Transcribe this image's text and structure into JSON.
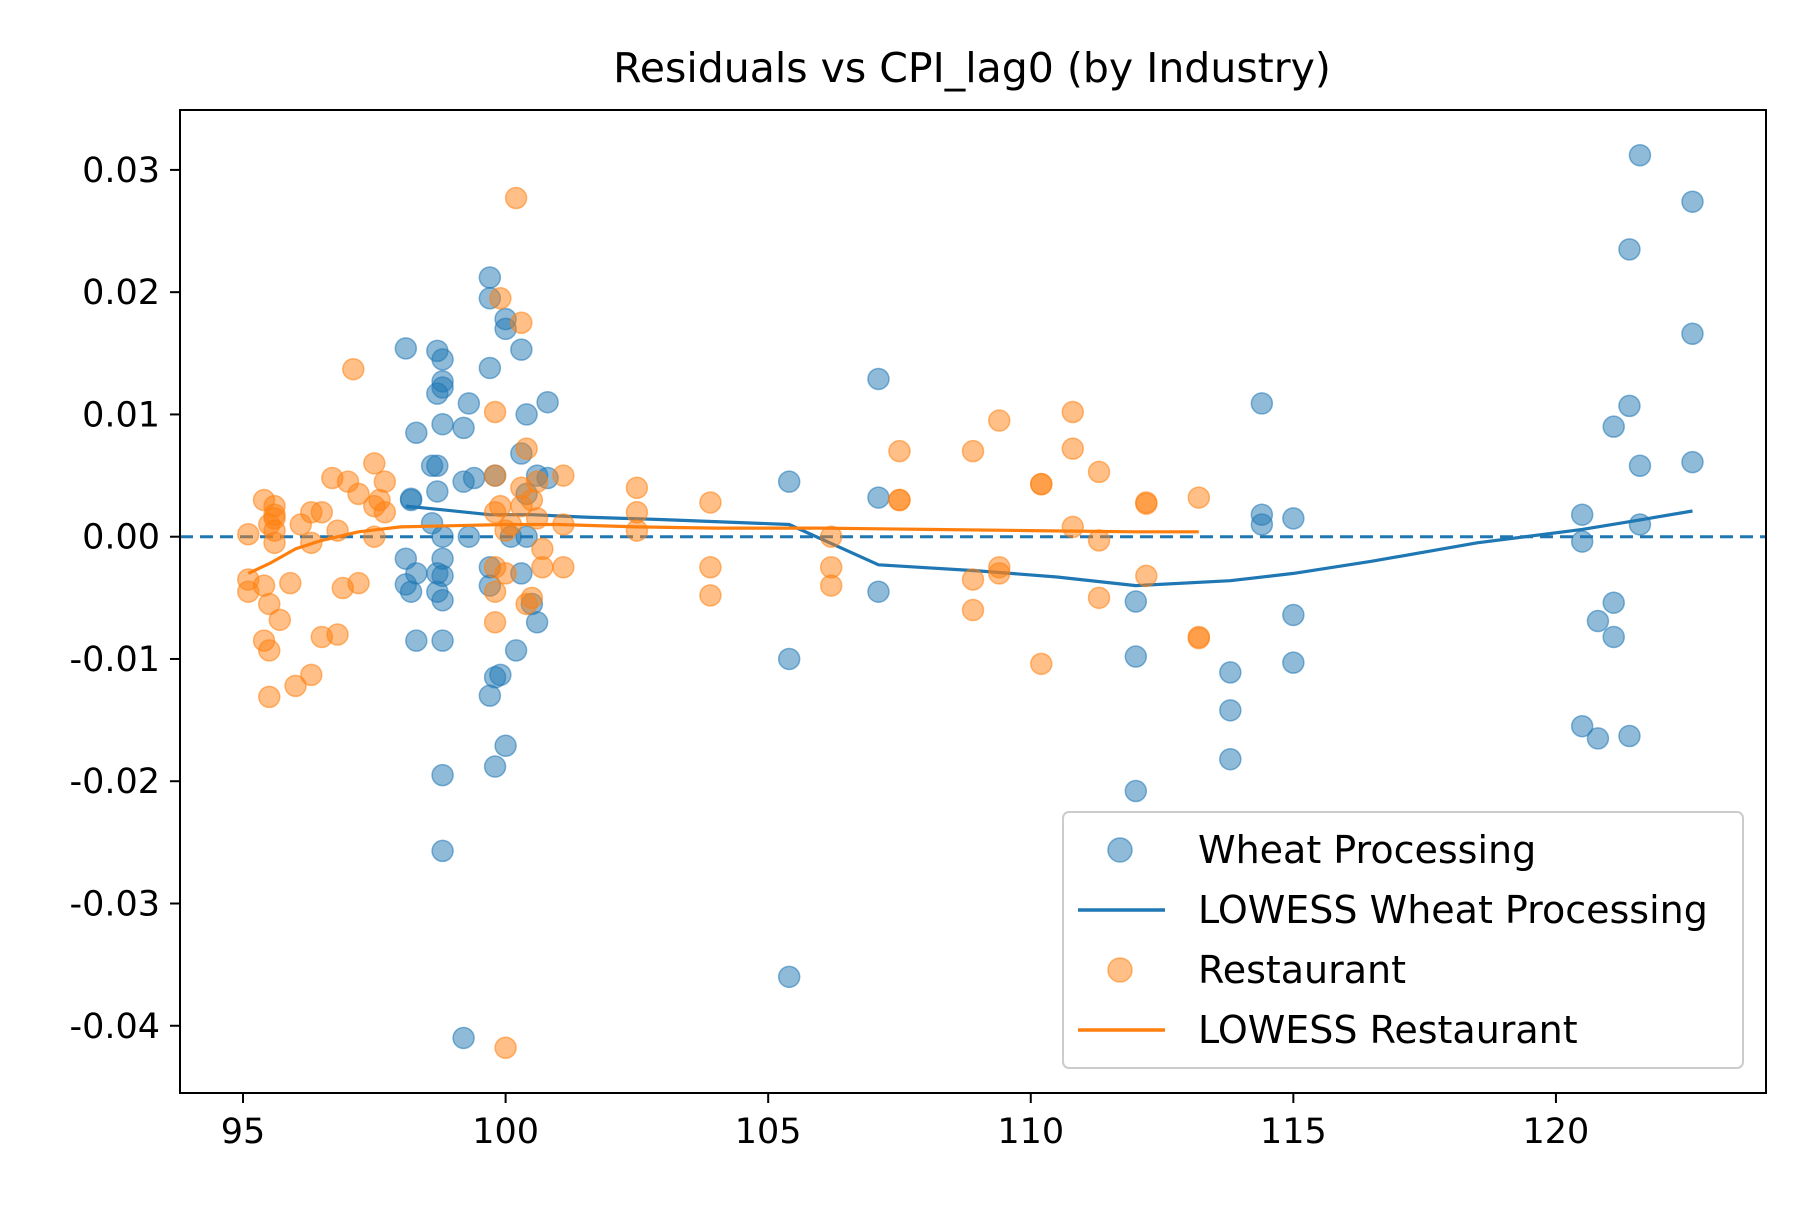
{
  "chart_data": {
    "type": "scatter",
    "title": "Residuals vs CPI_lag0 (by Industry)",
    "xlabel": "",
    "ylabel": "",
    "xlim": [
      93.8,
      124.0
    ],
    "ylim": [
      -0.0455,
      0.0349
    ],
    "x_ticks": [
      95,
      100,
      105,
      110,
      115,
      120
    ],
    "x_tick_labels": [
      "95",
      "100",
      "105",
      "110",
      "115",
      "120"
    ],
    "y_ticks": [
      -0.04,
      -0.03,
      -0.02,
      -0.01,
      0.0,
      0.01,
      0.02,
      0.03
    ],
    "y_tick_labels": [
      "-0.04",
      "-0.03",
      "-0.02",
      "-0.01",
      "0.00",
      "0.01",
      "0.02",
      "0.03"
    ],
    "reference_line": {
      "y": 0.0,
      "style": "dashed",
      "color": "#1f77b4"
    },
    "grid": false,
    "legend_position": "lower right",
    "series": [
      {
        "name": "Wheat Processing",
        "kind": "scatter",
        "color": "#1f77b4",
        "points": [
          [
            98.1,
            0.0154
          ],
          [
            98.2,
            0.003
          ],
          [
            98.2,
            0.0031
          ],
          [
            98.3,
            0.0085
          ],
          [
            98.3,
            -0.0085
          ],
          [
            98.1,
            -0.0018
          ],
          [
            98.1,
            -0.0039
          ],
          [
            98.2,
            -0.0045
          ],
          [
            98.3,
            -0.003
          ],
          [
            98.6,
            0.0058
          ],
          [
            98.6,
            0.0011
          ],
          [
            98.7,
            0.0152
          ],
          [
            98.8,
            0.0145
          ],
          [
            98.8,
            0.0127
          ],
          [
            98.8,
            0.0122
          ],
          [
            98.7,
            0.0117
          ],
          [
            98.8,
            0.0092
          ],
          [
            98.7,
            0.0058
          ],
          [
            98.7,
            0.0037
          ],
          [
            98.8,
            0.0
          ],
          [
            98.8,
            -0.0018
          ],
          [
            98.7,
            -0.003
          ],
          [
            98.8,
            -0.0032
          ],
          [
            98.7,
            -0.0045
          ],
          [
            98.8,
            -0.0052
          ],
          [
            98.8,
            -0.0085
          ],
          [
            98.8,
            -0.0195
          ],
          [
            98.8,
            -0.0257
          ],
          [
            99.2,
            0.0089
          ],
          [
            99.3,
            0.0109
          ],
          [
            99.2,
            0.0045
          ],
          [
            99.4,
            0.0048
          ],
          [
            99.3,
            0.0
          ],
          [
            99.2,
            -0.041
          ],
          [
            99.7,
            0.0212
          ],
          [
            99.7,
            0.0195
          ],
          [
            99.7,
            0.0138
          ],
          [
            99.8,
            0.005
          ],
          [
            99.7,
            -0.0025
          ],
          [
            99.7,
            -0.004
          ],
          [
            99.7,
            -0.013
          ],
          [
            99.8,
            -0.0115
          ],
          [
            99.8,
            -0.0188
          ],
          [
            99.9,
            -0.0113
          ],
          [
            100.0,
            -0.0171
          ],
          [
            100.0,
            0.0178
          ],
          [
            100.0,
            0.017
          ],
          [
            100.1,
            0.0
          ],
          [
            100.2,
            -0.0093
          ],
          [
            100.3,
            0.0068
          ],
          [
            100.3,
            0.0153
          ],
          [
            100.4,
            0.01
          ],
          [
            100.4,
            0.0035
          ],
          [
            100.4,
            0.0
          ],
          [
            100.5,
            -0.0055
          ],
          [
            100.6,
            -0.007
          ],
          [
            100.6,
            0.005
          ],
          [
            100.8,
            0.011
          ],
          [
            100.8,
            0.0048
          ],
          [
            100.3,
            -0.003
          ],
          [
            105.4,
            0.0045
          ],
          [
            105.4,
            -0.01
          ],
          [
            105.4,
            -0.036
          ],
          [
            107.1,
            0.0129
          ],
          [
            107.1,
            0.0032
          ],
          [
            107.1,
            -0.0045
          ],
          [
            112.0,
            -0.0053
          ],
          [
            112.0,
            -0.0098
          ],
          [
            112.0,
            -0.0208
          ],
          [
            113.8,
            -0.0111
          ],
          [
            113.8,
            -0.0142
          ],
          [
            113.8,
            -0.0182
          ],
          [
            114.4,
            0.0109
          ],
          [
            114.4,
            0.0018
          ],
          [
            114.4,
            0.001
          ],
          [
            115.0,
            0.0015
          ],
          [
            115.0,
            -0.0064
          ],
          [
            115.0,
            -0.0103
          ],
          [
            120.5,
            0.0018
          ],
          [
            120.5,
            -0.0004
          ],
          [
            120.5,
            -0.0155
          ],
          [
            120.8,
            -0.0069
          ],
          [
            120.8,
            -0.0165
          ],
          [
            121.1,
            0.009
          ],
          [
            121.1,
            -0.0054
          ],
          [
            121.1,
            -0.0082
          ],
          [
            121.4,
            0.0235
          ],
          [
            121.4,
            0.0107
          ],
          [
            121.4,
            -0.0163
          ],
          [
            121.6,
            0.0312
          ],
          [
            121.6,
            0.0058
          ],
          [
            121.6,
            0.001
          ],
          [
            122.6,
            0.0274
          ],
          [
            122.6,
            0.0166
          ],
          [
            122.6,
            0.0061
          ]
        ]
      },
      {
        "name": "LOWESS Wheat Processing",
        "kind": "line",
        "color": "#1f77b4",
        "points": [
          [
            98.1,
            0.0025
          ],
          [
            98.8,
            0.0022
          ],
          [
            99.7,
            0.0018
          ],
          [
            100.5,
            0.0018
          ],
          [
            101.5,
            0.0016
          ],
          [
            103.0,
            0.0014
          ],
          [
            105.4,
            0.001
          ],
          [
            107.1,
            -0.0023
          ],
          [
            109.0,
            -0.0028
          ],
          [
            110.5,
            -0.0033
          ],
          [
            112.0,
            -0.004
          ],
          [
            113.8,
            -0.0036
          ],
          [
            115.0,
            -0.003
          ],
          [
            116.5,
            -0.002
          ],
          [
            118.5,
            -0.0005
          ],
          [
            120.5,
            0.0006
          ],
          [
            121.5,
            0.0013
          ],
          [
            122.6,
            0.0021
          ]
        ]
      },
      {
        "name": "Restaurant",
        "kind": "scatter",
        "color": "#ff7f0e",
        "points": [
          [
            95.1,
            0.0002
          ],
          [
            95.1,
            -0.0035
          ],
          [
            95.1,
            -0.0045
          ],
          [
            95.4,
            0.003
          ],
          [
            95.4,
            -0.0085
          ],
          [
            95.5,
            -0.0093
          ],
          [
            95.5,
            -0.0131
          ],
          [
            95.5,
            -0.0055
          ],
          [
            95.4,
            -0.004
          ],
          [
            95.5,
            0.001
          ],
          [
            95.6,
            0.0025
          ],
          [
            95.6,
            0.0018
          ],
          [
            95.6,
            0.0005
          ],
          [
            95.6,
            -0.0005
          ],
          [
            95.7,
            -0.0068
          ],
          [
            95.6,
            0.0015
          ],
          [
            95.9,
            -0.0038
          ],
          [
            96.0,
            -0.0122
          ],
          [
            96.1,
            0.001
          ],
          [
            96.3,
            -0.0005
          ],
          [
            96.3,
            0.002
          ],
          [
            96.3,
            -0.0113
          ],
          [
            96.5,
            0.002
          ],
          [
            96.5,
            -0.0082
          ],
          [
            96.7,
            0.0048
          ],
          [
            96.8,
            0.0005
          ],
          [
            96.8,
            -0.008
          ],
          [
            96.9,
            -0.0042
          ],
          [
            97.0,
            0.0045
          ],
          [
            97.1,
            0.0137
          ],
          [
            97.2,
            0.0035
          ],
          [
            97.2,
            -0.0038
          ],
          [
            97.5,
            0.006
          ],
          [
            97.5,
            0.0
          ],
          [
            97.6,
            0.003
          ],
          [
            97.7,
            0.0045
          ],
          [
            97.7,
            0.002
          ],
          [
            97.5,
            0.0025
          ],
          [
            99.8,
            0.0102
          ],
          [
            99.8,
            0.005
          ],
          [
            99.8,
            0.002
          ],
          [
            99.8,
            -0.0025
          ],
          [
            99.8,
            -0.0045
          ],
          [
            99.8,
            -0.007
          ],
          [
            99.9,
            0.0195
          ],
          [
            99.9,
            0.0025
          ],
          [
            100.0,
            0.0005
          ],
          [
            100.0,
            -0.003
          ],
          [
            100.0,
            -0.0418
          ],
          [
            100.1,
            0.001
          ],
          [
            100.2,
            0.0277
          ],
          [
            100.3,
            0.0175
          ],
          [
            100.3,
            0.004
          ],
          [
            100.3,
            0.0025
          ],
          [
            100.4,
            0.0072
          ],
          [
            100.4,
            -0.0055
          ],
          [
            100.5,
            0.003
          ],
          [
            100.5,
            -0.005
          ],
          [
            100.6,
            0.0045
          ],
          [
            100.6,
            0.0015
          ],
          [
            100.7,
            -0.001
          ],
          [
            100.7,
            -0.0025
          ],
          [
            101.1,
            0.005
          ],
          [
            101.1,
            0.001
          ],
          [
            101.1,
            -0.0025
          ],
          [
            102.5,
            0.004
          ],
          [
            102.5,
            0.002
          ],
          [
            102.5,
            0.0005
          ],
          [
            103.9,
            0.0028
          ],
          [
            103.9,
            -0.0025
          ],
          [
            103.9,
            -0.0048
          ],
          [
            106.2,
            0.0
          ],
          [
            106.2,
            -0.0025
          ],
          [
            106.2,
            -0.004
          ],
          [
            107.5,
            0.007
          ],
          [
            107.5,
            0.003
          ],
          [
            107.5,
            0.003
          ],
          [
            108.9,
            0.007
          ],
          [
            108.9,
            -0.0035
          ],
          [
            108.9,
            -0.006
          ],
          [
            109.4,
            0.0095
          ],
          [
            109.4,
            -0.0025
          ],
          [
            109.4,
            -0.003
          ],
          [
            110.2,
            0.0043
          ],
          [
            110.2,
            0.0043
          ],
          [
            110.2,
            -0.0104
          ],
          [
            110.8,
            0.0102
          ],
          [
            110.8,
            0.0072
          ],
          [
            110.8,
            0.0008
          ],
          [
            111.3,
            0.0053
          ],
          [
            111.3,
            -0.0003
          ],
          [
            111.3,
            -0.005
          ],
          [
            112.2,
            0.0028
          ],
          [
            112.2,
            0.0027
          ],
          [
            112.2,
            -0.0032
          ],
          [
            113.2,
            0.0032
          ],
          [
            113.2,
            -0.0082
          ],
          [
            113.2,
            -0.0083
          ]
        ]
      },
      {
        "name": "LOWESS Restaurant",
        "kind": "line",
        "color": "#ff7f0e",
        "points": [
          [
            95.1,
            -0.003
          ],
          [
            95.5,
            -0.0022
          ],
          [
            96.0,
            -0.001
          ],
          [
            96.5,
            -0.0003
          ],
          [
            97.2,
            0.0004
          ],
          [
            98.0,
            0.0008
          ],
          [
            99.0,
            0.0009
          ],
          [
            100.0,
            0.001
          ],
          [
            101.0,
            0.001
          ],
          [
            102.5,
            0.0008
          ],
          [
            104.0,
            0.0007
          ],
          [
            106.0,
            0.0007
          ],
          [
            108.0,
            0.0006
          ],
          [
            110.0,
            0.0005
          ],
          [
            112.0,
            0.0004
          ],
          [
            113.2,
            0.0004
          ]
        ]
      }
    ]
  }
}
